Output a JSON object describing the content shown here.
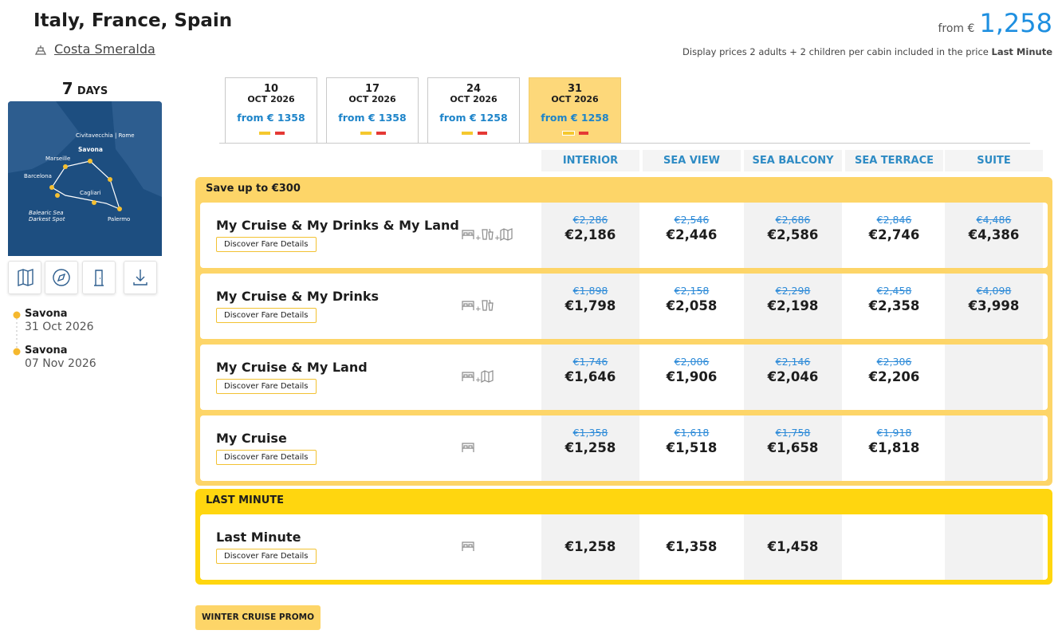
{
  "header": {
    "title": "Italy, France, Spain",
    "ship": "Costa Smeralda",
    "price_prefix": "from €",
    "price": "1,258",
    "note": "Display prices 2 adults + 2 children per cabin included in the price",
    "note_strong": "Last Minute"
  },
  "itinerary": {
    "days_number": "7",
    "days_label": "DAYS",
    "map_labels": [
      "Civitavecchia | Rome",
      "Savona",
      "Marseille",
      "Barcelona",
      "Cagliari",
      "Balearic Sea",
      "Darkest Spot",
      "Palermo"
    ],
    "stops": [
      {
        "port": "Savona",
        "date": "31 Oct 2026"
      },
      {
        "port": "Savona",
        "date": "07 Nov 2026"
      }
    ]
  },
  "dates": [
    {
      "day": "10",
      "month": "OCT 2026",
      "price": "from € 1358",
      "selected": false
    },
    {
      "day": "17",
      "month": "OCT 2026",
      "price": "from € 1358",
      "selected": false
    },
    {
      "day": "24",
      "month": "OCT 2026",
      "price": "from € 1258",
      "selected": false
    },
    {
      "day": "31",
      "month": "OCT 2026",
      "price": "from € 1258",
      "selected": true
    }
  ],
  "cabins": [
    "INTERIOR",
    "SEA VIEW",
    "SEA BALCONY",
    "SEA TERRACE",
    "SUITE"
  ],
  "groups": [
    {
      "title": "Save up to €300",
      "color": "#fdd568",
      "fares": [
        {
          "name": "My Cruise & My Drinks & My Land",
          "button": "Discover Fare Details",
          "prices": [
            {
              "old": "€2,286",
              "new": "€2,186"
            },
            {
              "old": "€2,546",
              "new": "€2,446"
            },
            {
              "old": "€2,686",
              "new": "€2,586"
            },
            {
              "old": "€2,846",
              "new": "€2,746"
            },
            {
              "old": "€4,486",
              "new": "€4,386"
            }
          ]
        },
        {
          "name": "My Cruise & My Drinks",
          "button": "Discover Fare Details",
          "prices": [
            {
              "old": "€1,898",
              "new": "€1,798"
            },
            {
              "old": "€2,158",
              "new": "€2,058"
            },
            {
              "old": "€2,298",
              "new": "€2,198"
            },
            {
              "old": "€2,458",
              "new": "€2,358"
            },
            {
              "old": "€4,098",
              "new": "€3,998"
            }
          ]
        },
        {
          "name": "My Cruise & My Land",
          "button": "Discover Fare Details",
          "prices": [
            {
              "old": "€1,746",
              "new": "€1,646"
            },
            {
              "old": "€2,006",
              "new": "€1,906"
            },
            {
              "old": "€2,146",
              "new": "€2,046"
            },
            {
              "old": "€2,306",
              "new": "€2,206"
            },
            null
          ]
        },
        {
          "name": "My Cruise",
          "button": "Discover Fare Details",
          "prices": [
            {
              "old": "€1,358",
              "new": "€1,258"
            },
            {
              "old": "€1,618",
              "new": "€1,518"
            },
            {
              "old": "€1,758",
              "new": "€1,658"
            },
            {
              "old": "€1,918",
              "new": "€1,818"
            },
            null
          ]
        }
      ]
    },
    {
      "title": "LAST MINUTE",
      "color": "#ffd60f",
      "fares": [
        {
          "name": "Last Minute",
          "button": "Discover Fare Details",
          "prices": [
            {
              "new": "€1,258"
            },
            {
              "new": "€1,358"
            },
            {
              "new": "€1,458"
            },
            null,
            null
          ]
        }
      ]
    }
  ],
  "promo": "WINTER CRUISE PROMO"
}
